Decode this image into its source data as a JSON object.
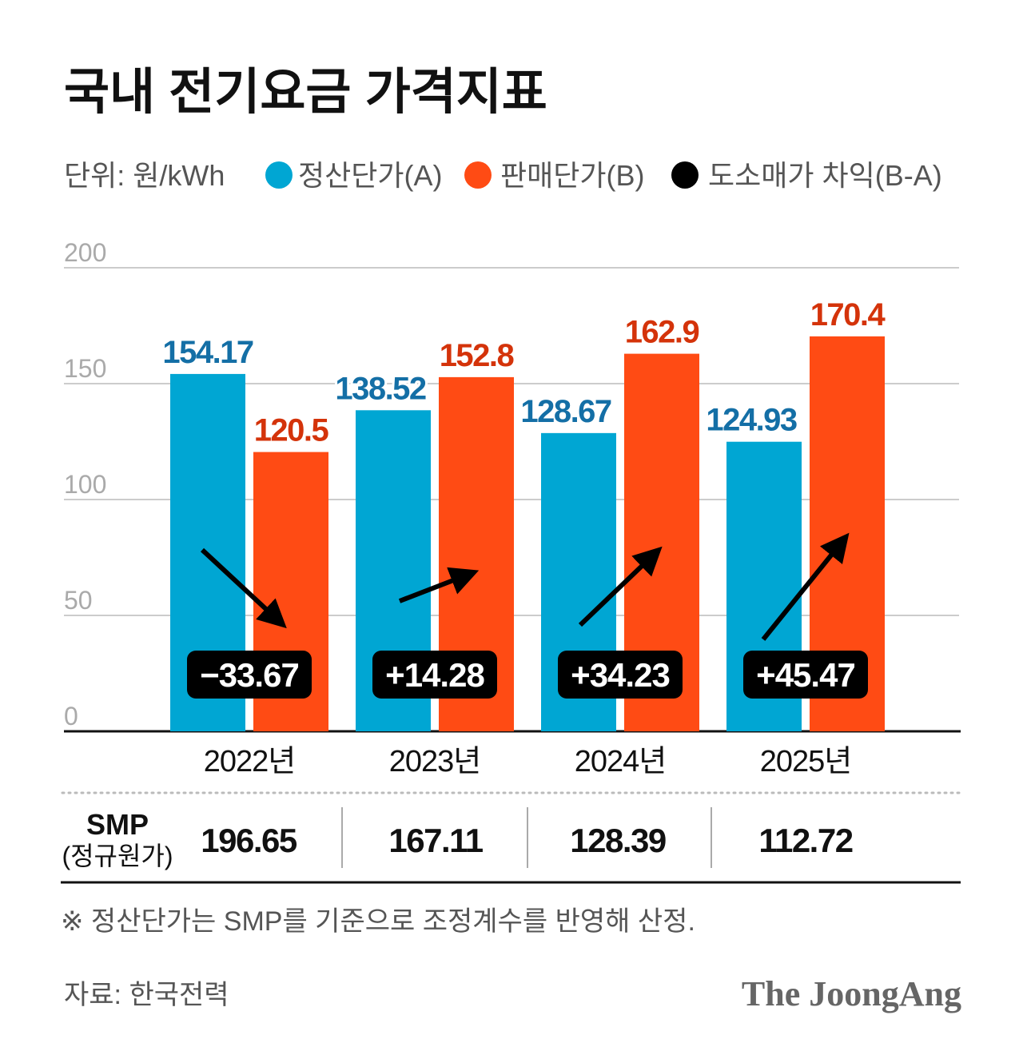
{
  "chart_data": {
    "type": "bar",
    "title": "국내 전기요금 가격지표",
    "unit_label": "단위: 원/kWh",
    "categories": [
      "2022년",
      "2023년",
      "2024년",
      "2025년"
    ],
    "series": [
      {
        "name": "정산단가(A)",
        "color": "#00a6d3",
        "label_color": "#146fa6",
        "values": [
          154.17,
          138.52,
          128.67,
          124.93
        ]
      },
      {
        "name": "판매단가(B)",
        "color": "#ff4b14",
        "label_color": "#d4330a",
        "values": [
          120.5,
          152.8,
          162.9,
          170.4
        ]
      }
    ],
    "difference": {
      "name": "도소매가 차익(B-A)",
      "color": "#000000",
      "labels": [
        "−33.67",
        "+14.28",
        "+34.23",
        "+45.47"
      ]
    },
    "value_labels_a": [
      "154.17",
      "138.52",
      "128.67",
      "124.93"
    ],
    "value_labels_b": [
      "120.5",
      "152.8",
      "162.9",
      "170.4"
    ],
    "ylim": [
      0,
      200
    ],
    "yticks": [
      "0",
      "50",
      "100",
      "150",
      "200"
    ],
    "grid": true,
    "legend_placement": "top"
  },
  "smp": {
    "label": "SMP",
    "sublabel": "(정규원가)",
    "values": [
      "196.65",
      "167.11",
      "128.39",
      "112.72"
    ]
  },
  "footnote": "※ 정산단가는 SMP를 기준으로 조정계수를 반영해 산정.",
  "source": "자료: 한국전력",
  "logo": "The JoongAng"
}
